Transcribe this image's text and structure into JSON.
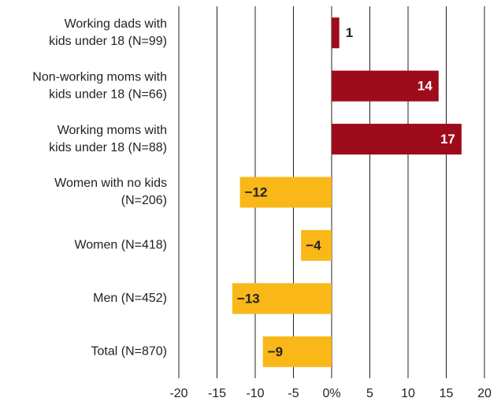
{
  "chart_data": {
    "type": "bar",
    "orientation": "horizontal",
    "categories": [
      [
        "Working dads  with",
        "kids under 18 (N=99)"
      ],
      [
        "Non-working moms with",
        "kids under 18 (N=66)"
      ],
      [
        "Working moms with",
        "kids under 18 (N=88)"
      ],
      [
        "Women with no kids",
        "(N=206)"
      ],
      [
        "Women (N=418)"
      ],
      [
        "Men (N=452)"
      ],
      [
        "Total (N=870)"
      ]
    ],
    "values": [
      1,
      14,
      17,
      -12,
      -4,
      -13,
      -9
    ],
    "value_labels": [
      "1",
      "14",
      "17",
      "−12",
      "−4",
      "−13",
      "−9"
    ],
    "colors": [
      "#9e0b1b",
      "#9e0b1b",
      "#9e0b1b",
      "#f9b718",
      "#f9b718",
      "#f9b718",
      "#f9b718"
    ],
    "xlim": [
      -20,
      20
    ],
    "xticks": [
      -20,
      -15,
      -10,
      -5,
      {
        "value": 0,
        "label": "0%"
      },
      5,
      10,
      15,
      20
    ],
    "grid": true
  }
}
